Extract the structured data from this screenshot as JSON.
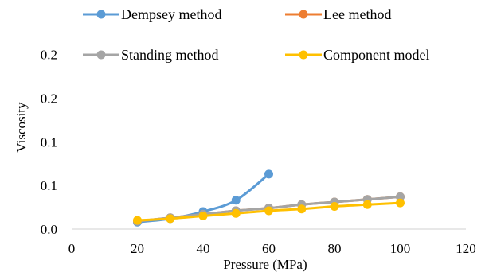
{
  "chart_data": {
    "type": "line",
    "title": "",
    "xlabel": "Pressure (MPa)",
    "ylabel": "Viscosity",
    "xlim": [
      0,
      120
    ],
    "ylim": [
      0,
      0.2625
    ],
    "x_ticks": [
      0,
      20,
      40,
      60,
      80,
      100,
      120
    ],
    "x_tick_labels": [
      "0",
      "20",
      "40",
      "60",
      "80",
      "100",
      "120"
    ],
    "y_ticks": [
      0,
      0.05,
      0.1,
      0.15,
      0.2
    ],
    "y_tick_labels": [
      "0.0",
      "0.1",
      "0.1",
      "0.2",
      "0.2"
    ],
    "grid": false,
    "legend_position": "top",
    "series": [
      {
        "name": "Dempsey method",
        "color": "#5b9bd5",
        "x": [
          20,
          30,
          40,
          50,
          60
        ],
        "y": [
          0.008,
          0.012,
          0.02,
          0.033,
          0.063
        ]
      },
      {
        "name": "Lee method",
        "color": "#ed7d31",
        "x": [
          20,
          30,
          40,
          50,
          60,
          70,
          80,
          90,
          100
        ],
        "y": [
          0.009,
          0.013,
          0.017,
          0.021,
          0.024,
          0.028,
          0.031,
          0.034,
          0.037
        ]
      },
      {
        "name": "Standing method",
        "color": "#a5a5a5",
        "x": [
          20,
          30,
          40,
          50,
          60,
          70,
          80,
          90,
          100
        ],
        "y": [
          0.009,
          0.013,
          0.017,
          0.021,
          0.024,
          0.028,
          0.031,
          0.034,
          0.037
        ]
      },
      {
        "name": "Component model",
        "color": "#ffc000",
        "x": [
          20,
          30,
          40,
          50,
          60,
          70,
          80,
          90,
          100
        ],
        "y": [
          0.01,
          0.012,
          0.015,
          0.018,
          0.021,
          0.023,
          0.026,
          0.028,
          0.03
        ]
      }
    ]
  }
}
